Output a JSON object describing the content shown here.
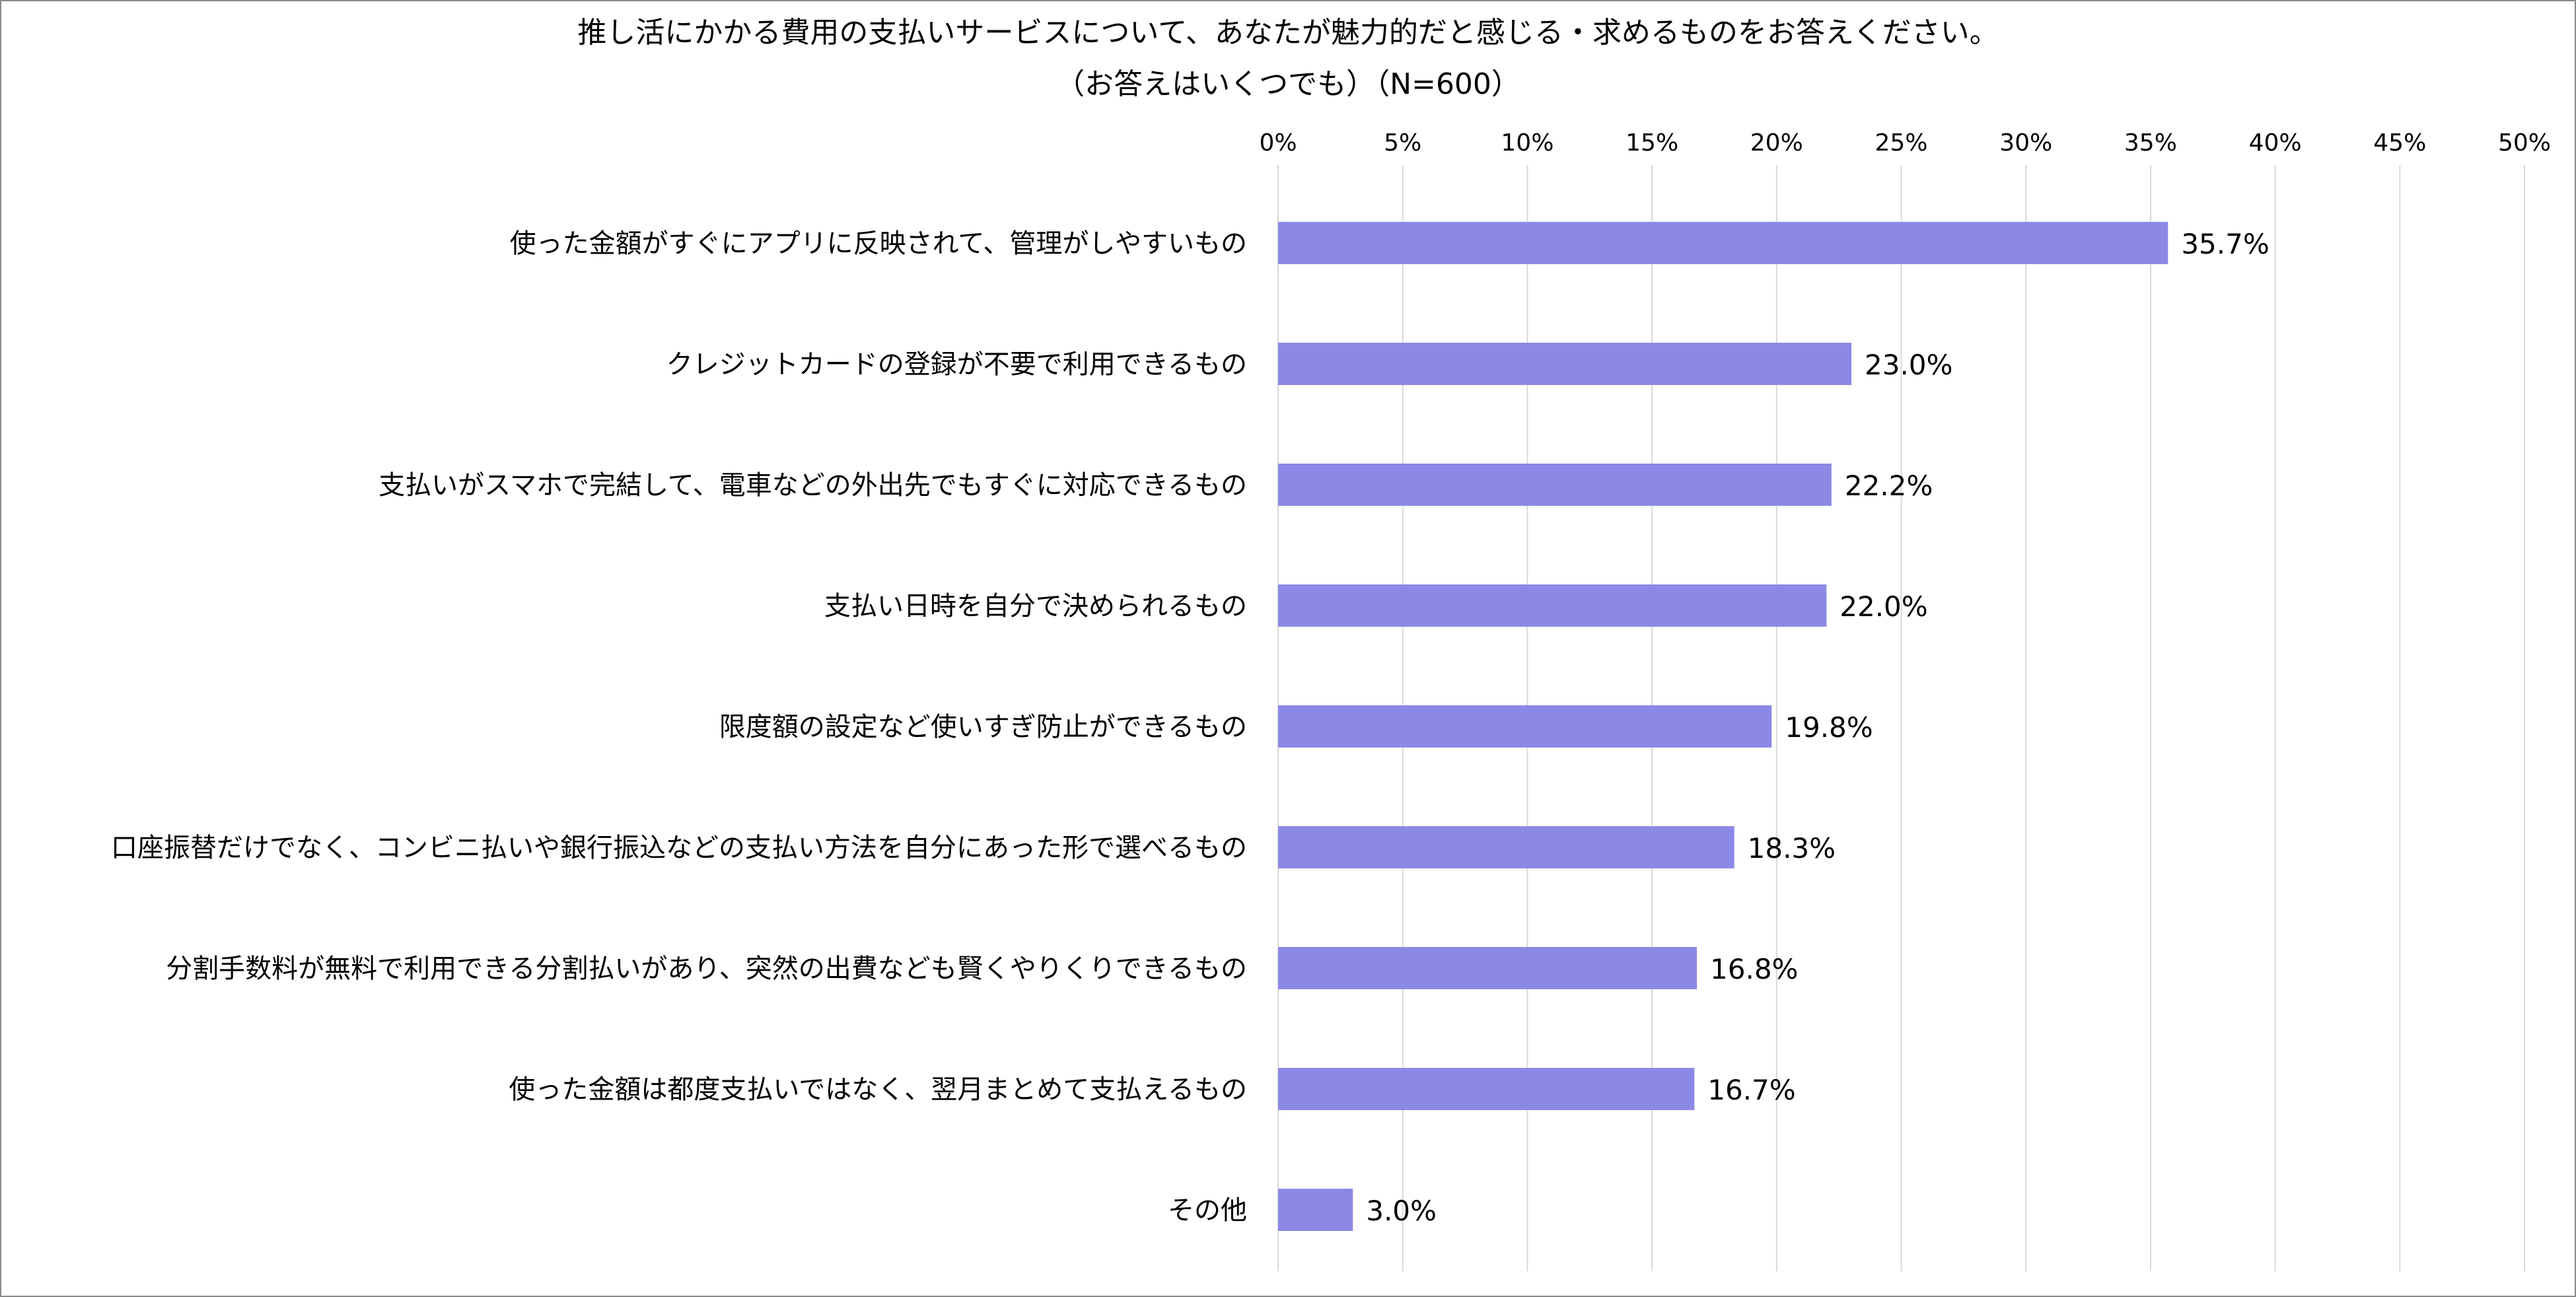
{
  "chart_data": {
    "type": "bar",
    "orientation": "horizontal",
    "title": "推し活にかかる費用の支払いサービスについて、あなたが魅力的だと感じる・求めるものをお答えください。",
    "subtitle": "（お答えはいくつでも）（N=600）",
    "xlim": [
      0,
      50
    ],
    "x_ticks": [
      "0%",
      "5%",
      "10%",
      "15%",
      "20%",
      "25%",
      "30%",
      "35%",
      "40%",
      "45%",
      "50%"
    ],
    "x_tick_values": [
      0,
      5,
      10,
      15,
      20,
      25,
      30,
      35,
      40,
      45,
      50
    ],
    "x_axis_position": "top",
    "grid": true,
    "legend": "none",
    "bar_color": "#8c89e6",
    "categories": [
      "使った金額がすぐにアプリに反映されて、管理がしやすいもの",
      "クレジットカードの登録が不要で利用できるもの",
      "支払いがスマホで完結して、電車などの外出先でもすぐに対応できるもの",
      "支払い日時を自分で決められるもの",
      "限度額の設定など使いすぎ防止ができるもの",
      "口座振替だけでなく、コンビニ払いや銀行振込などの支払い方法を自分にあった形で選べるもの",
      "分割手数料が無料で利用できる分割払いがあり、突然の出費なども賢くやりくりできるもの",
      "使った金額は都度支払いではなく、翌月まとめて支払えるもの",
      "その他"
    ],
    "values": [
      35.7,
      23.0,
      22.2,
      22.0,
      19.8,
      18.3,
      16.8,
      16.7,
      3.0
    ],
    "data_labels": [
      "35.7%",
      "23.0%",
      "22.2%",
      "22.0%",
      "19.8%",
      "18.3%",
      "16.8%",
      "16.7%",
      "3.0%"
    ]
  }
}
